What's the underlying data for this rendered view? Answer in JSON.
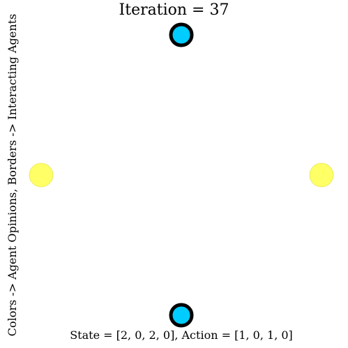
{
  "chart_data": {
    "type": "scatter",
    "title": "Iteration = 37",
    "xlabel": "State = [2, 0, 2, 0], Action = [1, 0, 1, 0]",
    "ylabel": "Colors -> Agent Opinions, Borders -> Interacting Agents",
    "xlim": [
      -1,
      1
    ],
    "ylim": [
      -1,
      1
    ],
    "grid": false,
    "colors": {
      "opinion_2": "#00ccff",
      "opinion_0": "#ffff66",
      "border": "#000000"
    },
    "points": [
      {
        "agent": 0,
        "x": 0,
        "y": 1,
        "state": 2,
        "action": 1,
        "color": "#00ccff",
        "interacting": true
      },
      {
        "agent": 1,
        "x": -1,
        "y": 0,
        "state": 0,
        "action": 0,
        "color": "#ffff66",
        "interacting": false
      },
      {
        "agent": 2,
        "x": 0,
        "y": -1,
        "state": 2,
        "action": 1,
        "color": "#00ccff",
        "interacting": true
      },
      {
        "agent": 3,
        "x": 1,
        "y": 0,
        "state": 0,
        "action": 0,
        "color": "#ffff66",
        "interacting": false
      }
    ]
  }
}
